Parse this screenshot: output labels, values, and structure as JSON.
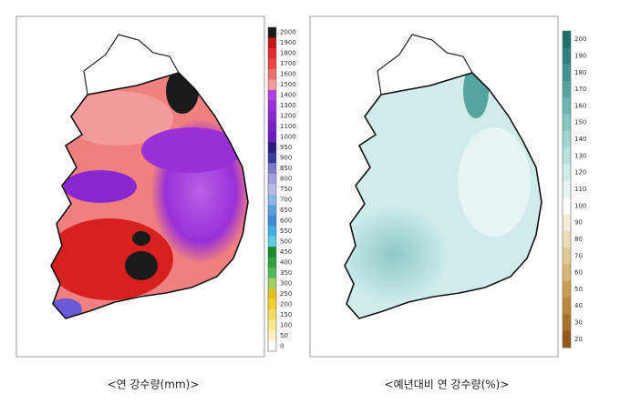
{
  "panels": [
    {
      "caption": "<연 강수량(mm)>",
      "colorbar": {
        "labels": [
          "2000",
          "1900",
          "1800",
          "1700",
          "1600",
          "1500",
          "1400",
          "1300",
          "1200",
          "1100",
          "1000",
          "950",
          "900",
          "850",
          "800",
          "750",
          "700",
          "650",
          "600",
          "550",
          "500",
          "450",
          "400",
          "350",
          "300",
          "250",
          "200",
          "150",
          "100",
          "50",
          "0"
        ],
        "colors": [
          "#1a1a1a",
          "#c41414",
          "#e02828",
          "#ee4444",
          "#f07070",
          "#f39a9a",
          "#b040e0",
          "#9a30d8",
          "#8a28d0",
          "#7a20c8",
          "#6a18c0",
          "#2a1a80",
          "#3a3aa0",
          "#7a7ac8",
          "#a0a0dc",
          "#b8b8e8",
          "#8ab8e8",
          "#5aa0e0",
          "#3a8ad8",
          "#40b0e0",
          "#60c8e8",
          "#1a8a2a",
          "#30a040",
          "#50b850",
          "#a0d060",
          "#e0c020",
          "#f0d030",
          "#f5dc60",
          "#f8e890",
          "#fbf2c0",
          "#ffffff"
        ]
      }
    },
    {
      "caption": "<예년대비 연 강수량(%)>",
      "colorbar": {
        "labels": [
          "200",
          "190",
          "180",
          "170",
          "160",
          "150",
          "140",
          "130",
          "120",
          "110",
          "100",
          "90",
          "80",
          "70",
          "60",
          "50",
          "40",
          "30",
          "20"
        ],
        "colors": [
          "#1f6e6a",
          "#2e807c",
          "#3f928e",
          "#55a4a0",
          "#6cb6b2",
          "#86c6c2",
          "#a0d6d2",
          "#b8e2de",
          "#cfece9",
          "#e6f5f3",
          "#ffffff",
          "#f5ecd8",
          "#ecdcb6",
          "#e2c994",
          "#d8b574",
          "#cb9e54",
          "#bc873a",
          "#a97028",
          "#94591a"
        ]
      }
    }
  ]
}
